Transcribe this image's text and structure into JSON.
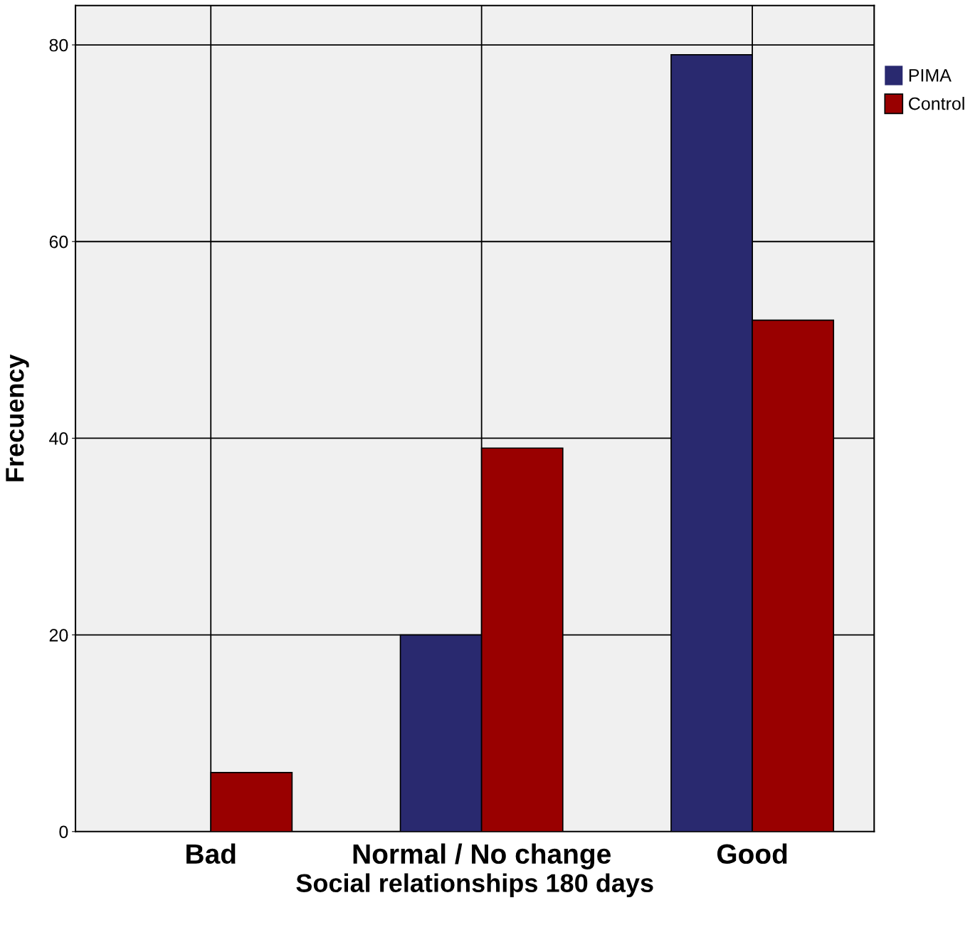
{
  "chart_data": {
    "type": "bar",
    "xlabel": "Social relationships 180 days",
    "ylabel": "Frecuency",
    "categories": [
      "Bad",
      "Normal / No change",
      "Good"
    ],
    "series": [
      {
        "name": "PIMA",
        "color": "#29296f",
        "values": [
          0,
          20,
          79
        ]
      },
      {
        "name": "Control",
        "color": "#990000",
        "values": [
          6,
          39,
          52
        ]
      }
    ],
    "ylim": [
      0,
      84
    ],
    "yticks": [
      0,
      20,
      40,
      60,
      80
    ],
    "grid": true,
    "legend": "top right"
  }
}
